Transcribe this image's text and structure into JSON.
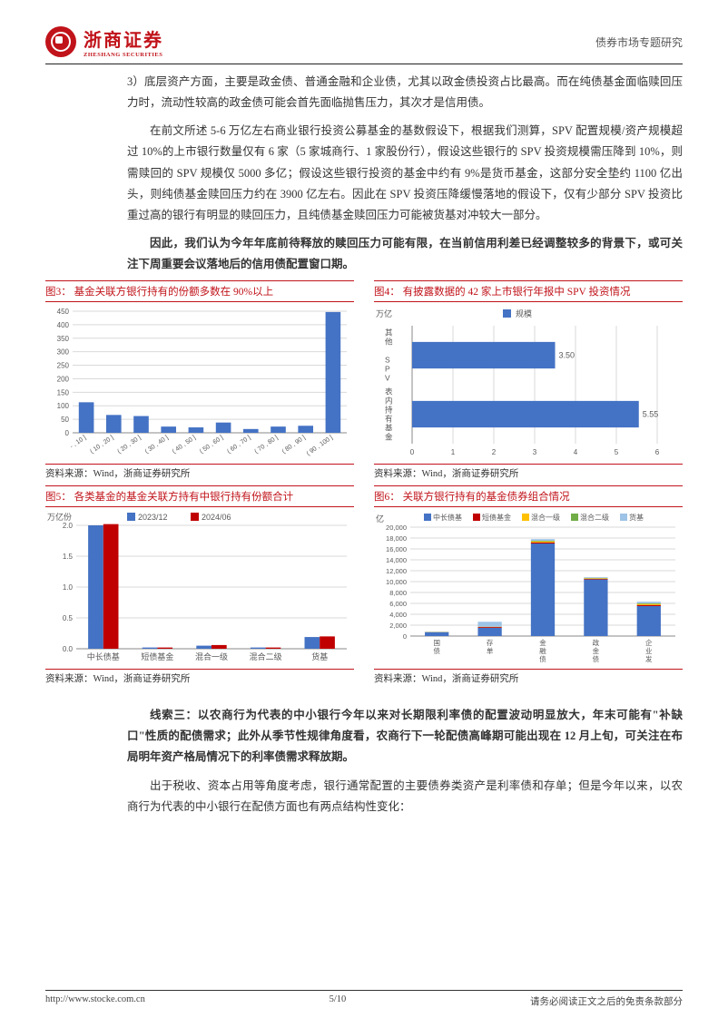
{
  "header": {
    "logo_cn": "浙商证券",
    "logo_en": "ZHESHANG SECURITIES",
    "right": "债券市场专题研究"
  },
  "paragraphs": {
    "p1": "3）底层资产方面，主要是政金债、普通金融和企业债，尤其以政金债投资占比最高。而在纯债基金面临赎回压力时，流动性较高的政金债可能会首先面临抛售压力，其次才是信用债。",
    "p2": "在前文所述 5-6 万亿左右商业银行投资公募基金的基数假设下，根据我们测算，SPV 配置规模/资产规模超过 10%的上市银行数量仅有 6 家（5 家城商行、1 家股份行），假设这些银行的 SPV 投资规模需压降到 10%，则需赎回的 SPV 规模仅 5000 多亿；假设这些银行投资的基金中约有 9%是货币基金，这部分安全垫约 1100 亿出头，则纯债基金赎回压力约在 3900 亿左右。因此在 SPV 投资压降缓慢落地的假设下，仅有少部分 SPV 投资比重过高的银行有明显的赎回压力，且纯债基金赎回压力可能被货基对冲较大一部分。",
    "p3": "因此，我们认为今年年底前待释放的赎回压力可能有限，在当前信用利差已经调整较多的背景下，或可关注下周重要会议落地后的信用债配置窗口期。",
    "p4": "线索三：以农商行为代表的中小银行今年以来对长期限利率债的配置波动明显放大，年末可能有\"补缺口\"性质的配债需求；此外从季节性规律角度看，农商行下一轮配债高峰期可能出现在 12 月上旬，可关注在布局明年资产格局情况下的利率债需求释放期。",
    "p5": "出于税收、资本占用等角度考虑，银行通常配置的主要债券类资产是利率债和存单；但是今年以来，以农商行为代表的中小银行在配债方面也有两点结构性变化："
  },
  "chart3": {
    "title": "图3：  基金关联方银行持有的份额多数在 90%以上",
    "type": "bar",
    "categories": [
      "- , 10 ]",
      "( 10 , 20 ]",
      "( 20 , 30 ]",
      "( 30 , 40 ]",
      "( 40 , 50 ]",
      "( 50 , 60 ]",
      "( 60 , 70 ]",
      "( 70 , 80 ]",
      "( 80 , 90 ]",
      "( 90 , 100 ]"
    ],
    "values": [
      113,
      66,
      62,
      23,
      20,
      38,
      14,
      23,
      26,
      447
    ],
    "ymax": 450,
    "ytick": 50,
    "bar_color": "#4472c4",
    "grid_color": "#d9d9d9",
    "axis_color": "#888888",
    "text_color": "#595959",
    "label_fontsize": 7,
    "tick_fontsize": 8,
    "source": "资料来源：Wind，浙商证券研究所"
  },
  "chart4": {
    "title": "图4：  有披露数据的 42 家上市银行年报中 SPV 投资情况",
    "type": "hbar",
    "ylabel": "万亿",
    "legend": "规模",
    "categories": [
      "其他 SPV",
      "表内持有基金"
    ],
    "values": [
      3.5,
      5.55
    ],
    "value_labels": [
      "3.50",
      "5.55"
    ],
    "xmax": 6,
    "xtick": 1,
    "bar_color": "#4472c4",
    "grid_color": "#d9d9d9",
    "axis_color": "#888888",
    "text_color": "#595959",
    "tick_fontsize": 8,
    "source": "资料来源：Wind，浙商证券研究所"
  },
  "chart5": {
    "title": "图5：  各类基金的基金关联方持有中银行持有份额合计",
    "type": "grouped_bar",
    "ylabel": "万亿份",
    "legend": [
      "2023/12",
      "2024/06"
    ],
    "categories": [
      "中长债基",
      "短债基金",
      "混合一级",
      "混合二级",
      "货基"
    ],
    "series": {
      "s1": [
        2.0,
        0.02,
        0.05,
        0.02,
        0.19
      ],
      "s2": [
        2.02,
        0.02,
        0.06,
        0.02,
        0.2
      ]
    },
    "colors": [
      "#4472c4",
      "#c00000"
    ],
    "ymax": 2.0,
    "ytick": 0.5,
    "grid_color": "#d9d9d9",
    "axis_color": "#888888",
    "text_color": "#595959",
    "tick_fontsize": 8,
    "source": "资料来源：Wind，浙商证券研究所"
  },
  "chart6": {
    "title": "图6：  关联方银行持有的基金债券组合情况",
    "type": "stacked_bar",
    "ylabel": "亿",
    "legend": [
      "中长债基",
      "短债基金",
      "混合一级",
      "混合二级",
      "货基"
    ],
    "colors": [
      "#4472c4",
      "#c00000",
      "#ffc000",
      "#70ad47",
      "#9dc3e6"
    ],
    "categories": [
      "国债",
      "存单",
      "金融债（含政金）",
      "政金债",
      "企业发行债券"
    ],
    "stacks": [
      [
        700,
        10,
        30,
        10,
        60
      ],
      [
        1500,
        150,
        50,
        20,
        900
      ],
      [
        17000,
        200,
        200,
        100,
        300
      ],
      [
        10400,
        100,
        100,
        50,
        150
      ],
      [
        5500,
        200,
        200,
        100,
        300
      ]
    ],
    "ymax": 20000,
    "ytick": 2000,
    "grid_color": "#d9d9d9",
    "axis_color": "#888888",
    "text_color": "#595959",
    "tick_fontsize": 7.5,
    "source": "资料来源：Wind，浙商证券研究所"
  },
  "footer": {
    "left": "http://www.stocke.com.cn",
    "center": "5/10",
    "right": "请务必阅读正文之后的免责条款部分"
  }
}
